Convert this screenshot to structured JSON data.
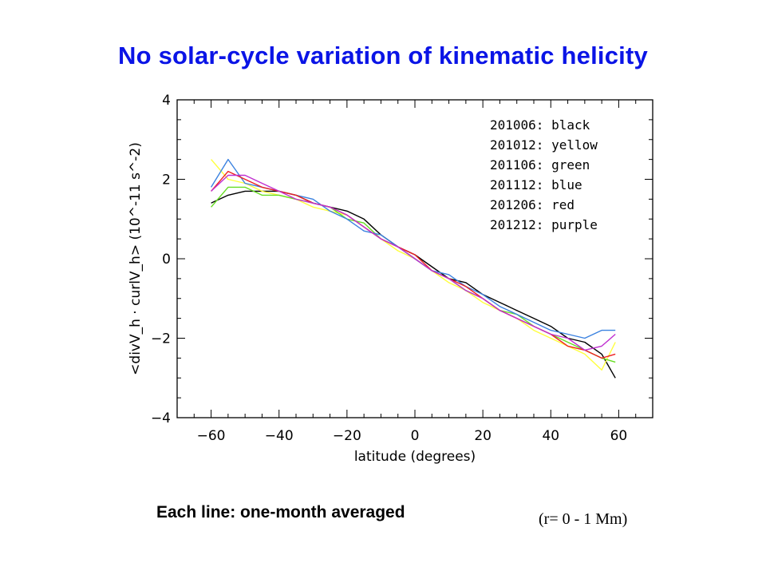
{
  "slide": {
    "title": "No solar-cycle variation of kinematic helicity",
    "caption": "Each line: one-month averaged",
    "range_note": "(r= 0 - 1 Mm)"
  },
  "colors": {
    "title": "#0a14e6"
  },
  "chart_data": {
    "type": "line",
    "xlabel": "latitude (degrees)",
    "ylabel": "<divV_h · curlV_h> (10^-11 s^-2)",
    "xlim": [
      -70,
      70
    ],
    "ylim": [
      -4,
      4
    ],
    "xticks": [
      -60,
      -40,
      -20,
      0,
      20,
      40,
      60
    ],
    "yticks": [
      -4,
      -2,
      0,
      2,
      4
    ],
    "xtick_labels": [
      "−60",
      "−40",
      "−20",
      "0",
      "20",
      "40",
      "60"
    ],
    "ytick_labels": [
      "−4",
      "−2",
      "0",
      "2",
      "4"
    ],
    "grid": false,
    "legend_position": "top-right",
    "x": [
      -60,
      -55,
      -50,
      -45,
      -40,
      -35,
      -30,
      -25,
      -20,
      -15,
      -10,
      -5,
      0,
      5,
      10,
      15,
      20,
      25,
      30,
      35,
      40,
      45,
      50,
      55,
      59
    ],
    "series": [
      {
        "name": "201006: black",
        "color": "#000000",
        "values": [
          1.4,
          1.6,
          1.7,
          1.7,
          1.7,
          1.6,
          1.4,
          1.3,
          1.2,
          1.0,
          0.6,
          0.3,
          0.1,
          -0.2,
          -0.5,
          -0.6,
          -0.9,
          -1.1,
          -1.3,
          -1.5,
          -1.7,
          -2.0,
          -2.1,
          -2.4,
          -3.0
        ]
      },
      {
        "name": "201012: yellow",
        "color": "#ffff3c",
        "values": [
          2.5,
          2.0,
          1.9,
          1.7,
          1.6,
          1.5,
          1.3,
          1.2,
          1.1,
          0.8,
          0.5,
          0.2,
          0.0,
          -0.3,
          -0.6,
          -0.8,
          -1.1,
          -1.3,
          -1.5,
          -1.8,
          -2.0,
          -2.2,
          -2.4,
          -2.8,
          -2.1
        ]
      },
      {
        "name": "201106: green",
        "color": "#66dd22",
        "values": [
          1.3,
          1.8,
          1.8,
          1.6,
          1.6,
          1.5,
          1.4,
          1.3,
          1.0,
          0.9,
          0.5,
          0.3,
          0.0,
          -0.3,
          -0.5,
          -0.8,
          -1.0,
          -1.3,
          -1.4,
          -1.7,
          -1.9,
          -2.1,
          -2.3,
          -2.5,
          -2.6
        ]
      },
      {
        "name": "201112: blue",
        "color": "#3b82e0",
        "values": [
          1.8,
          2.5,
          1.9,
          1.8,
          1.7,
          1.6,
          1.5,
          1.2,
          1.0,
          0.7,
          0.6,
          0.3,
          0.0,
          -0.3,
          -0.4,
          -0.7,
          -0.9,
          -1.2,
          -1.4,
          -1.6,
          -1.8,
          -1.9,
          -2.0,
          -1.8,
          -1.8
        ]
      },
      {
        "name": "201206: red",
        "color": "#ee2020",
        "values": [
          1.7,
          2.2,
          2.0,
          1.8,
          1.7,
          1.6,
          1.4,
          1.3,
          1.1,
          0.8,
          0.5,
          0.3,
          0.1,
          -0.3,
          -0.5,
          -0.7,
          -1.0,
          -1.3,
          -1.5,
          -1.7,
          -1.9,
          -2.2,
          -2.3,
          -2.5,
          -2.4
        ]
      },
      {
        "name": "201212: purple",
        "color": "#c030d0",
        "values": [
          1.7,
          2.1,
          2.1,
          1.9,
          1.7,
          1.5,
          1.4,
          1.3,
          1.1,
          0.8,
          0.5,
          0.3,
          0.0,
          -0.3,
          -0.5,
          -0.8,
          -1.0,
          -1.3,
          -1.5,
          -1.7,
          -1.9,
          -2.0,
          -2.3,
          -2.2,
          -1.9
        ]
      }
    ]
  }
}
